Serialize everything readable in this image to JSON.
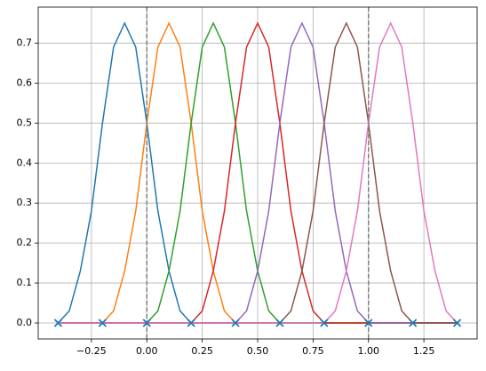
{
  "chart_data": {
    "type": "line",
    "x": [
      -0.4,
      -0.35,
      -0.3,
      -0.25,
      -0.2,
      -0.15,
      -0.1,
      -0.05,
      0,
      0.05,
      0.1,
      0.15,
      0.2,
      0.25,
      0.3,
      0.35,
      0.4,
      0.45,
      0.5,
      0.55,
      0.6,
      0.65,
      0.7,
      0.75,
      0.8,
      0.85,
      0.9,
      0.95,
      1,
      1.05,
      1.1,
      1.15,
      1.2,
      1.25,
      1.3,
      1.35,
      1.4
    ],
    "series": [
      {
        "color": "#1f77b4",
        "values": [
          0,
          0.03,
          0.13,
          0.28,
          0.5,
          0.69,
          0.75,
          0.69,
          0.5,
          0.28,
          0.13,
          0.03,
          0,
          0,
          0,
          0,
          0,
          0,
          0,
          0,
          0,
          0,
          0,
          0,
          0,
          0,
          0,
          0,
          0,
          0,
          0,
          0,
          0,
          0,
          0,
          0,
          0
        ]
      },
      {
        "color": "#ff7f0e",
        "values": [
          0,
          0,
          0,
          0,
          0,
          0.03,
          0.13,
          0.28,
          0.5,
          0.69,
          0.75,
          0.69,
          0.5,
          0.28,
          0.13,
          0.03,
          0,
          0,
          0,
          0,
          0,
          0,
          0,
          0,
          0,
          0,
          0,
          0,
          0,
          0,
          0,
          0,
          0,
          0,
          0,
          0,
          0
        ]
      },
      {
        "color": "#2ca02c",
        "values": [
          0,
          0,
          0,
          0,
          0,
          0,
          0,
          0,
          0,
          0.03,
          0.13,
          0.28,
          0.5,
          0.69,
          0.75,
          0.69,
          0.5,
          0.28,
          0.13,
          0.03,
          0,
          0,
          0,
          0,
          0,
          0,
          0,
          0,
          0,
          0,
          0,
          0,
          0,
          0,
          0,
          0,
          0
        ]
      },
      {
        "color": "#d62728",
        "values": [
          0,
          0,
          0,
          0,
          0,
          0,
          0,
          0,
          0,
          0,
          0,
          0,
          0,
          0.03,
          0.13,
          0.28,
          0.5,
          0.69,
          0.75,
          0.69,
          0.5,
          0.28,
          0.13,
          0.03,
          0,
          0,
          0,
          0,
          0,
          0,
          0,
          0,
          0,
          0,
          0,
          0,
          0
        ]
      },
      {
        "color": "#9467bd",
        "values": [
          0,
          0,
          0,
          0,
          0,
          0,
          0,
          0,
          0,
          0,
          0,
          0,
          0,
          0,
          0,
          0,
          0,
          0.03,
          0.13,
          0.28,
          0.5,
          0.69,
          0.75,
          0.69,
          0.5,
          0.28,
          0.13,
          0.03,
          0,
          0,
          0,
          0,
          0,
          0,
          0,
          0,
          0
        ]
      },
      {
        "color": "#8c564b",
        "values": [
          0,
          0,
          0,
          0,
          0,
          0,
          0,
          0,
          0,
          0,
          0,
          0,
          0,
          0,
          0,
          0,
          0,
          0,
          0,
          0,
          0,
          0.03,
          0.13,
          0.28,
          0.5,
          0.69,
          0.75,
          0.69,
          0.5,
          0.28,
          0.13,
          0.03,
          0,
          0,
          0,
          0,
          0
        ]
      },
      {
        "color": "#e377c2",
        "values": [
          0,
          0,
          0,
          0,
          0,
          0,
          0,
          0,
          0,
          0,
          0,
          0,
          0,
          0,
          0,
          0,
          0,
          0,
          0,
          0,
          0,
          0,
          0,
          0,
          0,
          0.03,
          0.13,
          0.28,
          0.5,
          0.69,
          0.75,
          0.69,
          0.5,
          0.28,
          0.13,
          0.03,
          0
        ]
      }
    ],
    "knots": {
      "color": "#1f77b4",
      "x": [
        -0.4,
        -0.2,
        0,
        0.2,
        0.4,
        0.6,
        0.8,
        1,
        1.2,
        1.4
      ],
      "y": [
        0,
        0,
        0,
        0,
        0,
        0,
        0,
        0,
        0,
        0
      ]
    },
    "vlines": {
      "color": "#808080",
      "x": [
        0,
        1
      ]
    },
    "xlim": [
      -0.49,
      1.49
    ],
    "ylim": [
      -0.04,
      0.79
    ],
    "xticks": [
      {
        "value": -0.25,
        "label": "−0.25"
      },
      {
        "value": 0,
        "label": "0.00"
      },
      0.25,
      {
        "value": 0.5,
        "label": "0.50"
      },
      0.75,
      {
        "value": 1,
        "label": "1.00"
      },
      1.25
    ],
    "yticks": [
      {
        "value": 0,
        "label": "0.0"
      },
      0.1,
      0.2,
      0.3,
      0.4,
      0.5,
      0.6,
      0.7
    ],
    "grid": true
  }
}
